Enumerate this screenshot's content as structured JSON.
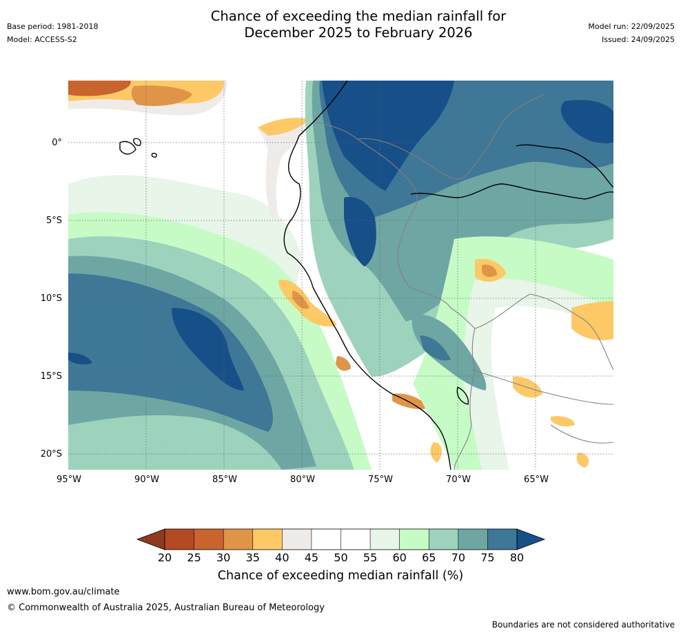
{
  "header": {
    "title_line1": "Chance of exceeding the median rainfall for",
    "title_line2": "December 2025 to February 2026",
    "base_period": "Base period: 1981-2018",
    "model": "Model: ACCESS-S2",
    "model_run": "Model run: 22/09/2025",
    "issued": "Issued: 24/09/2025"
  },
  "map": {
    "lat_labels": [
      "0°",
      "5°S",
      "10°S",
      "15°S",
      "20°S"
    ],
    "lon_labels": [
      "95°W",
      "90°W",
      "85°W",
      "80°W",
      "75°W",
      "70°W",
      "65°W"
    ]
  },
  "colorbar": {
    "ticks": [
      "20",
      "25",
      "30",
      "35",
      "40",
      "45",
      "50",
      "55",
      "60",
      "65",
      "70",
      "75",
      "80"
    ],
    "colors": [
      "#b34a24",
      "#c9642f",
      "#e09447",
      "#fdc966",
      "#efebe8",
      "#ffffff",
      "#ffffff",
      "#e8f5e9",
      "#c6fbc6",
      "#9dd3bc",
      "#6ea6a4",
      "#3f7797"
    ],
    "under_color": "#8f3a1e",
    "over_color": "#174f88",
    "title": "Chance of exceeding median rainfall (%)"
  },
  "footer": {
    "website": "www.bom.gov.au/climate",
    "copyright": "© Commonwealth of Australia 2025, Australian Bureau of Meteorology",
    "disclaimer": "Boundaries are not considered authoritative"
  }
}
